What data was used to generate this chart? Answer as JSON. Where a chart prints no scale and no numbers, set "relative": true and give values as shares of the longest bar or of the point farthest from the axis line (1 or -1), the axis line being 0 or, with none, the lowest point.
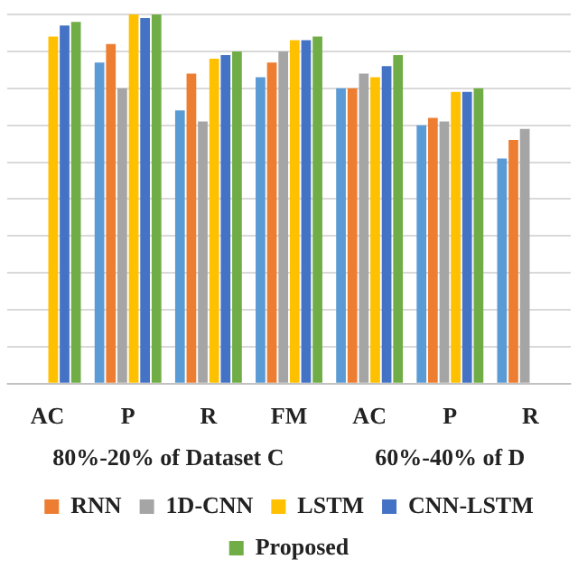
{
  "chart_data": {
    "type": "bar",
    "relative": true,
    "grid": "y",
    "legend": "bottom",
    "categories": [
      "AC",
      "P",
      "R",
      "FM",
      "AC",
      "P",
      "R"
    ],
    "annotations": [
      "80%-20% of Dataset C",
      "60%-40% of D"
    ],
    "series": [
      {
        "color": "#5b9bd5",
        "values": [
          null,
          0.87,
          0.74,
          0.83,
          0.8,
          0.7,
          0.61
        ]
      },
      {
        "name": "RNN",
        "color": "#ed7d31",
        "values": [
          null,
          0.92,
          0.84,
          0.87,
          0.8,
          0.72,
          0.66
        ]
      },
      {
        "name": "1D-CNN",
        "color": "#a5a5a5",
        "values": [
          null,
          0.8,
          0.71,
          0.9,
          0.84,
          0.71,
          0.69
        ]
      },
      {
        "name": "LSTM",
        "color": "#ffc000",
        "values": [
          0.94,
          1,
          0.88,
          0.93,
          0.83,
          0.79,
          null
        ]
      },
      {
        "name": "CNN-LSTM",
        "color": "#4472c4",
        "values": [
          0.97,
          0.99,
          0.89,
          0.93,
          0.86,
          0.79,
          null
        ]
      },
      {
        "name": "Proposed",
        "color": "#70ad47",
        "values": [
          0.98,
          1,
          0.9,
          0.94,
          0.89,
          0.8,
          null
        ]
      }
    ]
  }
}
